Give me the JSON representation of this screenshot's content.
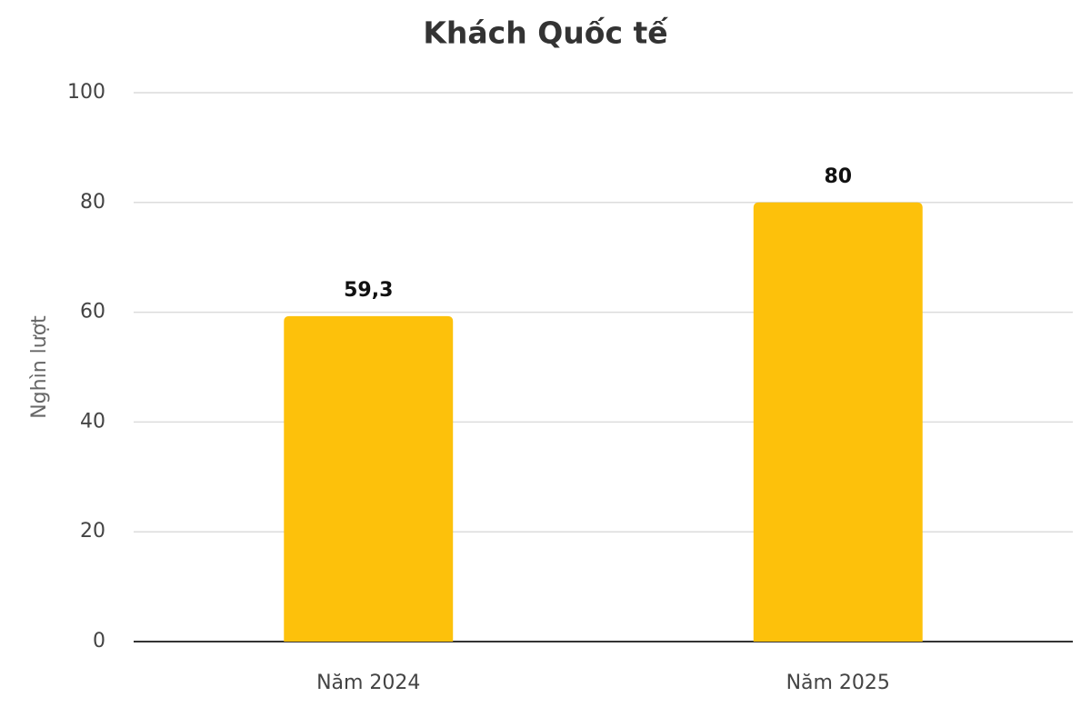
{
  "chart_data": {
    "type": "bar",
    "title": "Khách Quốc tế",
    "y_label": "Nghìn lượt",
    "categories": [
      "Năm 2024",
      "Năm 2025"
    ],
    "values": [
      59.3,
      80
    ],
    "value_labels": [
      "59,3",
      "80"
    ],
    "color": "#fdc10b",
    "ylim": [
      0,
      100
    ],
    "yticks": [
      0,
      20,
      40,
      60,
      80,
      100
    ],
    "grid": true
  }
}
